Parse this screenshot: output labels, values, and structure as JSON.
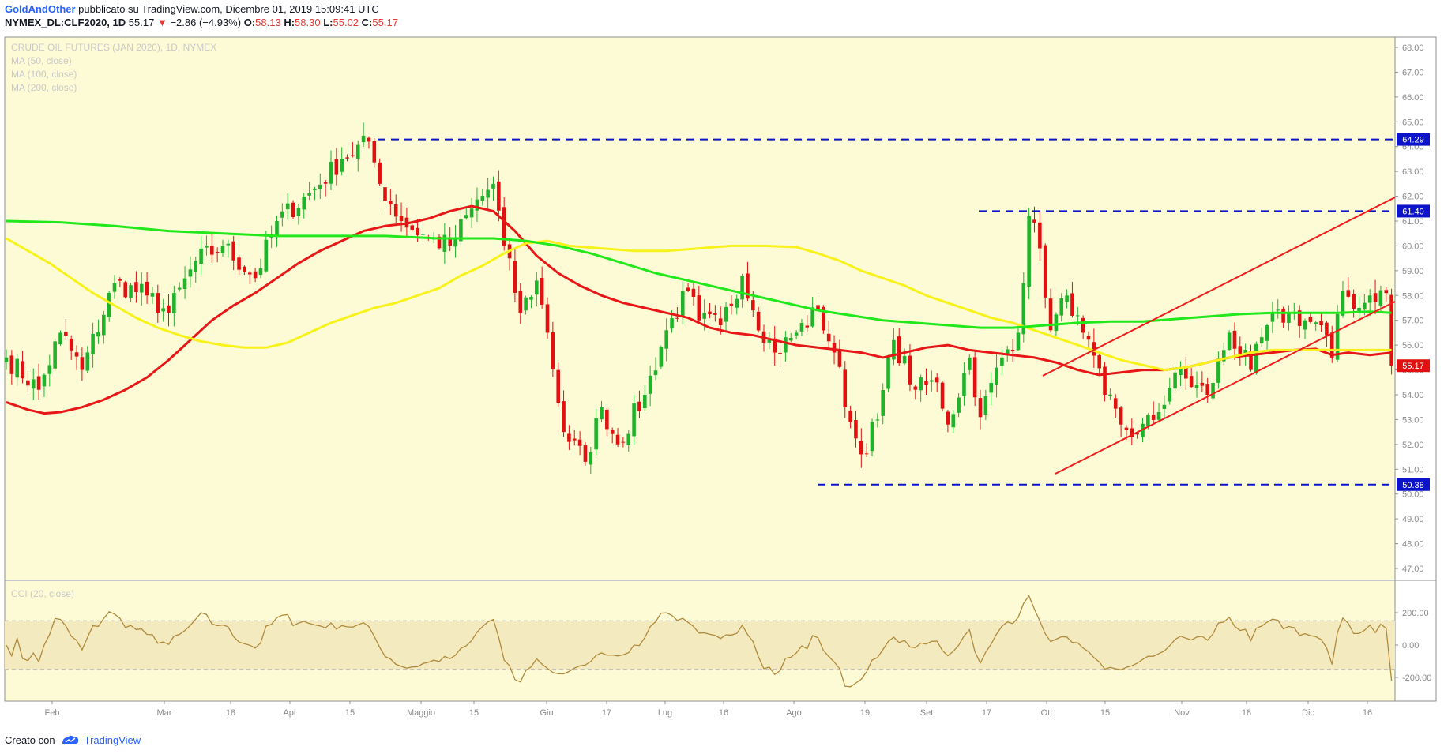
{
  "header": {
    "author": "GoldAndOther",
    "published": "pubblicato su TradingView.com, Dicembre 01, 2019 15:09:41 UTC",
    "symbol": "NYMEX_DL:CLF2020, 1D",
    "last": "55.17",
    "change_arrow": "▼",
    "change": "−2.86 (−4.93%)",
    "o_label": "O:",
    "o_value": "58.13",
    "h_label": "H:",
    "h_value": "58.30",
    "l_label": "L:",
    "l_value": "55.02",
    "c_label": "C:",
    "c_value": "55.17"
  },
  "legend": {
    "title": "CRUDE OIL FUTURES (JAN 2020), 1D, NYMEX",
    "ma50": "MA (50, close)",
    "ma100": "MA (100, close)",
    "ma200": "MA (200, close)",
    "cci": "CCI (20, close)"
  },
  "footer": {
    "created": "Creato con",
    "brand": "TradingView"
  },
  "colors": {
    "background": "#fdfbd6",
    "bull": "#21b22c",
    "bear": "#e21111",
    "ma50": "#e81717",
    "ma100": "#f7f21b",
    "ma200": "#21e81b",
    "levels": "#0c14c9",
    "channel": "#f21b1b",
    "cci": "#b08a3c",
    "cci_band": "#f3ebbf"
  },
  "chart_data": [
    {
      "type": "candlestick",
      "title": "CRUDE OIL FUTURES (JAN 2020), 1D, NYMEX",
      "ylim": [
        46.5,
        68.5
      ],
      "y_ticks": [
        "47.00",
        "48.00",
        "49.00",
        "50.00",
        "51.00",
        "52.00",
        "53.00",
        "54.00",
        "55.00",
        "56.00",
        "57.00",
        "58.00",
        "59.00",
        "60.00",
        "61.00",
        "62.00",
        "63.00",
        "64.00",
        "65.00",
        "66.00",
        "67.00",
        "68.00"
      ],
      "x_labels": [
        "Feb",
        "Mar",
        "18",
        "Apr",
        "15",
        "Maggio",
        "15",
        "Giu",
        "17",
        "Lug",
        "16",
        "Ago",
        "19",
        "Set",
        "17",
        "Ott",
        "15",
        "Nov",
        "18",
        "Dic",
        "16"
      ],
      "price_label": "55.17",
      "horizontal_levels": [
        {
          "label": "64.29",
          "value": 64.29
        },
        {
          "label": "61.40",
          "value": 61.4
        },
        {
          "label": "50.38",
          "value": 50.38
        }
      ],
      "anchors": [
        [
          0,
          55.5
        ],
        [
          6,
          54.2
        ],
        [
          10,
          56.5
        ],
        [
          14,
          55.0
        ],
        [
          20,
          58.5
        ],
        [
          26,
          58.0
        ],
        [
          30,
          57.3
        ],
        [
          35,
          59.4
        ],
        [
          40,
          60.0
        ],
        [
          46,
          58.7
        ],
        [
          50,
          61.0
        ],
        [
          57,
          62.3
        ],
        [
          62,
          63.5
        ],
        [
          67,
          64.2
        ],
        [
          69,
          62.5
        ],
        [
          73,
          61.0
        ],
        [
          78,
          60.3
        ],
        [
          82,
          60.0
        ],
        [
          86,
          61.5
        ],
        [
          90,
          62.5
        ],
        [
          92,
          60.0
        ],
        [
          95,
          57.3
        ],
        [
          98,
          58.6
        ],
        [
          100,
          56.5
        ],
        [
          103,
          52.5
        ],
        [
          107,
          51.3
        ],
        [
          110,
          53.5
        ],
        [
          113,
          52.0
        ],
        [
          118,
          54.0
        ],
        [
          122,
          56.6
        ],
        [
          126,
          58.2
        ],
        [
          128,
          57.0
        ],
        [
          132,
          56.8
        ],
        [
          136,
          58.8
        ],
        [
          138,
          57.4
        ],
        [
          142,
          55.7
        ],
        [
          146,
          56.5
        ],
        [
          150,
          57.4
        ],
        [
          153,
          55.7
        ],
        [
          156,
          52.9
        ],
        [
          158,
          51.6
        ],
        [
          161,
          53.0
        ],
        [
          164,
          56.2
        ],
        [
          168,
          54.2
        ],
        [
          172,
          54.5
        ],
        [
          174,
          52.8
        ],
        [
          178,
          55.5
        ],
        [
          180,
          53.1
        ],
        [
          184,
          55.5
        ],
        [
          187,
          56.5
        ],
        [
          189,
          61.2
        ],
        [
          191,
          59.9
        ],
        [
          193,
          56.6
        ],
        [
          196,
          58.0
        ],
        [
          198,
          57.2
        ],
        [
          199,
          56.5
        ],
        [
          203,
          54.0
        ],
        [
          206,
          52.8
        ],
        [
          209,
          52.4
        ],
        [
          213,
          53.3
        ],
        [
          216,
          54.9
        ],
        [
          222,
          54.0
        ],
        [
          226,
          56.5
        ],
        [
          230,
          55.0
        ],
        [
          233,
          56.8
        ],
        [
          237,
          57.3
        ],
        [
          240,
          57.0
        ],
        [
          243,
          56.8
        ],
        [
          245,
          55.5
        ],
        [
          247,
          58.2
        ],
        [
          250,
          57.5
        ],
        [
          252,
          58.0
        ],
        [
          255,
          58.1
        ],
        [
          256,
          55.17
        ]
      ],
      "ma_50_note": "red line",
      "ma_100_note": "yellow line",
      "ma_200_note": "green line"
    },
    {
      "type": "line",
      "title": "CCI (20, close)",
      "ylim": [
        -360,
        360
      ],
      "y_ticks": [
        "200.00",
        "0.00",
        "-200.00"
      ],
      "band": [
        -150,
        150
      ]
    }
  ]
}
